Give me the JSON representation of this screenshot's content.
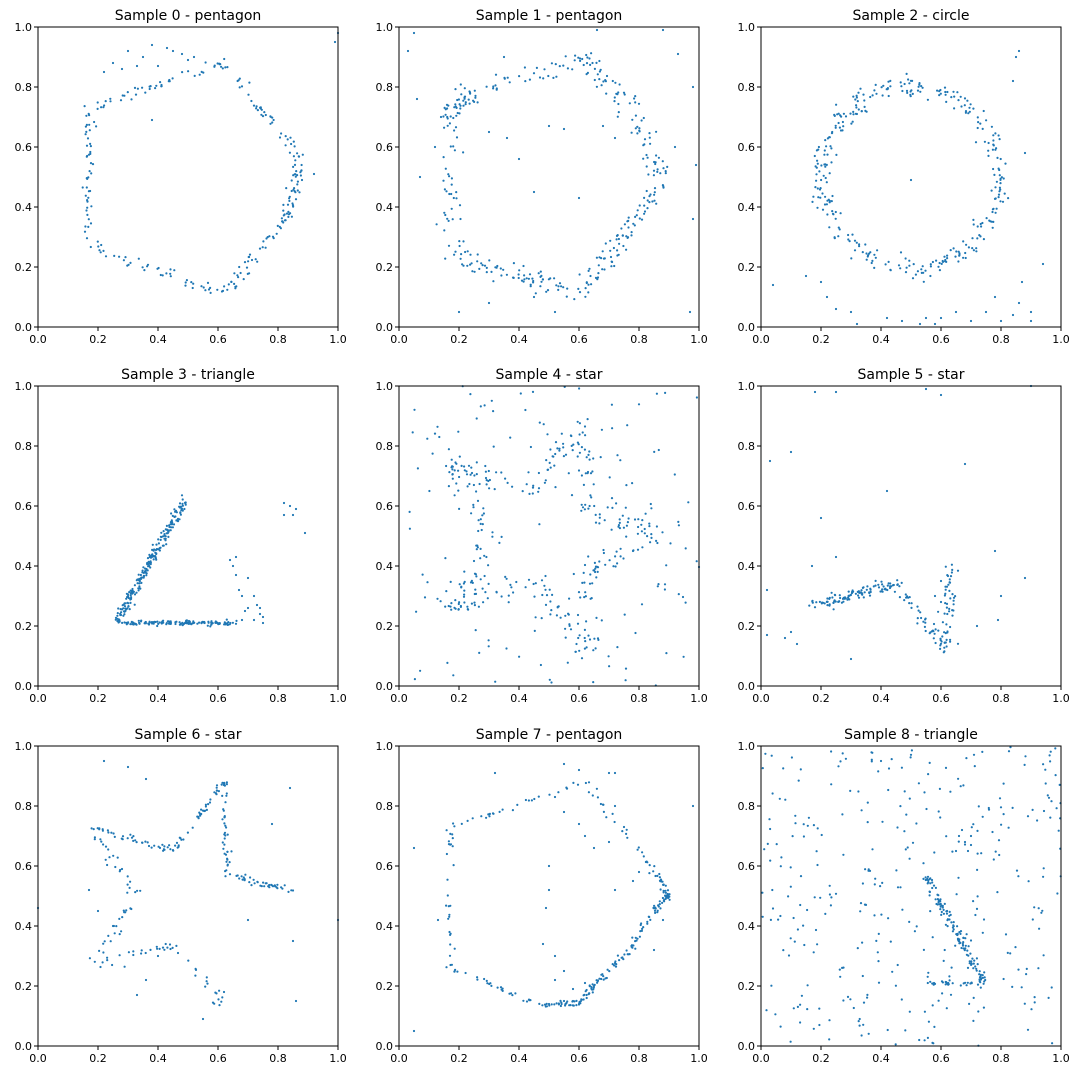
{
  "figure": {
    "point_color": "#1f77b4",
    "background": "#ffffff"
  },
  "chart_data": [
    {
      "type": "scatter",
      "title": "Sample 0 - pentagon",
      "xlim": [
        0,
        1
      ],
      "ylim": [
        0,
        1
      ],
      "xticks": [
        "0.0",
        "0.2",
        "0.4",
        "0.6",
        "0.8",
        "1.0"
      ],
      "yticks": [
        "0.0",
        "0.2",
        "0.4",
        "0.6",
        "0.8",
        "1.0"
      ],
      "grid": false,
      "outline": [
        [
          0.17,
          0.73
        ],
        [
          0.62,
          0.88
        ],
        [
          0.88,
          0.55
        ],
        [
          0.83,
          0.37
        ],
        [
          0.62,
          0.11
        ],
        [
          0.17,
          0.27
        ],
        [
          0.17,
          0.73
        ]
      ],
      "points_per_segment": 45,
      "noise": 0.01,
      "extra_points": [
        [
          0.25,
          0.88
        ],
        [
          0.3,
          0.92
        ],
        [
          0.35,
          0.9
        ],
        [
          0.38,
          0.94
        ],
        [
          0.45,
          0.92
        ],
        [
          0.5,
          0.89
        ],
        [
          0.22,
          0.85
        ],
        [
          0.28,
          0.86
        ],
        [
          0.33,
          0.87
        ],
        [
          0.4,
          0.87
        ],
        [
          0.43,
          0.93
        ],
        [
          0.48,
          0.91
        ],
        [
          0.52,
          0.9
        ],
        [
          0.99,
          0.95
        ],
        [
          1.0,
          0.98
        ],
        [
          0.92,
          0.51
        ],
        [
          0.38,
          0.69
        ]
      ]
    },
    {
      "type": "scatter",
      "title": "Sample 1 - pentagon",
      "xlim": [
        0,
        1
      ],
      "ylim": [
        0,
        1
      ],
      "xticks": [
        "0.0",
        "0.2",
        "0.4",
        "0.6",
        "0.8",
        "1.0"
      ],
      "yticks": [
        "0.0",
        "0.2",
        "0.4",
        "0.6",
        "0.8",
        "1.0"
      ],
      "grid": false,
      "outline": [
        [
          0.17,
          0.72
        ],
        [
          0.25,
          0.78
        ],
        [
          0.62,
          0.9
        ],
        [
          0.8,
          0.7
        ],
        [
          0.87,
          0.48
        ],
        [
          0.75,
          0.3
        ],
        [
          0.62,
          0.12
        ],
        [
          0.4,
          0.17
        ],
        [
          0.17,
          0.25
        ],
        [
          0.17,
          0.72
        ]
      ],
      "points_per_segment": 40,
      "noise": 0.018,
      "extra_points": [
        [
          0.03,
          0.92
        ],
        [
          0.05,
          0.98
        ],
        [
          0.06,
          0.76
        ],
        [
          0.07,
          0.5
        ],
        [
          0.12,
          0.6
        ],
        [
          0.3,
          0.65
        ],
        [
          0.36,
          0.63
        ],
        [
          0.4,
          0.56
        ],
        [
          0.45,
          0.45
        ],
        [
          0.5,
          0.67
        ],
        [
          0.55,
          0.66
        ],
        [
          0.6,
          0.43
        ],
        [
          0.68,
          0.67
        ],
        [
          0.72,
          0.63
        ],
        [
          0.88,
          0.99
        ],
        [
          0.98,
          0.8
        ],
        [
          0.99,
          0.54
        ],
        [
          0.98,
          0.36
        ],
        [
          0.97,
          0.05
        ],
        [
          0.2,
          0.05
        ],
        [
          0.3,
          0.08
        ],
        [
          0.45,
          0.1
        ],
        [
          0.52,
          0.05
        ],
        [
          0.66,
          0.99
        ],
        [
          0.14,
          0.7
        ],
        [
          0.35,
          0.9
        ],
        [
          0.93,
          0.91
        ],
        [
          0.92,
          0.6
        ]
      ]
    },
    {
      "type": "scatter",
      "title": "Sample 2 - circle",
      "xlim": [
        0,
        1
      ],
      "ylim": [
        0,
        1
      ],
      "xticks": [
        "0.0",
        "0.2",
        "0.4",
        "0.6",
        "0.8",
        "1.0"
      ],
      "yticks": [
        "0.0",
        "0.2",
        "0.4",
        "0.6",
        "0.8",
        "1.0"
      ],
      "grid": false,
      "circle": {
        "cx": 0.5,
        "cy": 0.5,
        "rx": 0.3,
        "ry": 0.3,
        "n": 330,
        "noise": 0.018
      },
      "extra_points": [
        [
          0.5,
          0.49
        ],
        [
          0.85,
          0.9
        ],
        [
          0.86,
          0.92
        ],
        [
          0.84,
          0.82
        ],
        [
          0.88,
          0.58
        ],
        [
          0.04,
          0.14
        ],
        [
          0.15,
          0.17
        ],
        [
          0.2,
          0.15
        ],
        [
          0.22,
          0.1
        ],
        [
          0.25,
          0.06
        ],
        [
          0.3,
          0.05
        ],
        [
          0.32,
          0.01
        ],
        [
          0.47,
          0.02
        ],
        [
          0.53,
          0.01
        ],
        [
          0.55,
          0.03
        ],
        [
          0.58,
          0.01
        ],
        [
          0.65,
          0.05
        ],
        [
          0.7,
          0.02
        ],
        [
          0.75,
          0.05
        ],
        [
          0.78,
          0.1
        ],
        [
          0.8,
          0.02
        ],
        [
          0.84,
          0.04
        ],
        [
          0.86,
          0.08
        ],
        [
          0.9,
          0.05
        ],
        [
          0.9,
          0.02
        ],
        [
          0.94,
          0.21
        ],
        [
          0.6,
          0.03
        ],
        [
          0.42,
          0.03
        ],
        [
          0.87,
          0.15
        ]
      ]
    },
    {
      "type": "scatter",
      "title": "Sample 3 - triangle",
      "xlim": [
        0,
        1
      ],
      "ylim": [
        0,
        1
      ],
      "xticks": [
        "0.0",
        "0.2",
        "0.4",
        "0.6",
        "0.8",
        "1.0"
      ],
      "yticks": [
        "0.0",
        "0.2",
        "0.4",
        "0.6",
        "0.8",
        "1.0"
      ],
      "grid": false,
      "outline": [
        [
          0.26,
          0.21
        ],
        [
          0.49,
          0.62
        ]
      ],
      "points_per_segment": 220,
      "noise": 0.008,
      "outline2": [
        [
          0.26,
          0.21
        ],
        [
          0.66,
          0.21
        ]
      ],
      "points_per_segment2": 130,
      "noise2": 0.004,
      "extra_points": [
        [
          0.64,
          0.42
        ],
        [
          0.65,
          0.4
        ],
        [
          0.66,
          0.37
        ],
        [
          0.67,
          0.32
        ],
        [
          0.68,
          0.3
        ],
        [
          0.69,
          0.25
        ],
        [
          0.7,
          0.26
        ],
        [
          0.7,
          0.36
        ],
        [
          0.72,
          0.3
        ],
        [
          0.73,
          0.27
        ],
        [
          0.74,
          0.26
        ],
        [
          0.74,
          0.24
        ],
        [
          0.75,
          0.23
        ],
        [
          0.75,
          0.21
        ],
        [
          0.72,
          0.22
        ],
        [
          0.68,
          0.22
        ],
        [
          0.82,
          0.61
        ],
        [
          0.84,
          0.6
        ],
        [
          0.82,
          0.57
        ],
        [
          0.86,
          0.59
        ],
        [
          0.85,
          0.57
        ],
        [
          0.89,
          0.51
        ],
        [
          0.66,
          0.43
        ]
      ]
    },
    {
      "type": "scatter",
      "title": "Sample 4 - star",
      "xlim": [
        0,
        1
      ],
      "ylim": [
        0,
        1
      ],
      "xticks": [
        "0.0",
        "0.2",
        "0.4",
        "0.6",
        "0.8",
        "1.0"
      ],
      "yticks": [
        "0.0",
        "0.2",
        "0.4",
        "0.6",
        "0.8",
        "1.0"
      ],
      "grid": false,
      "outline": [
        [
          0.18,
          0.73
        ],
        [
          0.45,
          0.66
        ],
        [
          0.62,
          0.88
        ],
        [
          0.63,
          0.58
        ],
        [
          0.87,
          0.52
        ],
        [
          0.63,
          0.38
        ],
        [
          0.62,
          0.12
        ],
        [
          0.45,
          0.34
        ],
        [
          0.18,
          0.27
        ],
        [
          0.31,
          0.5
        ],
        [
          0.18,
          0.73
        ]
      ],
      "points_per_segment": 30,
      "noise": 0.02,
      "random_noise": {
        "n": 160,
        "seed": 44
      }
    },
    {
      "type": "scatter",
      "title": "Sample 5 - star",
      "xlim": [
        0,
        1
      ],
      "ylim": [
        0,
        1
      ],
      "xticks": [
        "0.0",
        "0.2",
        "0.4",
        "0.6",
        "0.8",
        "1.0"
      ],
      "yticks": [
        "0.0",
        "0.2",
        "0.4",
        "0.6",
        "0.8",
        "1.0"
      ],
      "grid": false,
      "outline": [
        [
          0.18,
          0.27
        ],
        [
          0.3,
          0.3
        ],
        [
          0.45,
          0.34
        ],
        [
          0.62,
          0.12
        ],
        [
          0.63,
          0.41
        ]
      ],
      "points_per_segment": 50,
      "noise": 0.012,
      "extra_points": [
        [
          0.18,
          0.98
        ],
        [
          0.25,
          0.98
        ],
        [
          0.03,
          0.75
        ],
        [
          0.1,
          0.78
        ],
        [
          0.2,
          0.56
        ],
        [
          0.42,
          0.65
        ],
        [
          0.55,
          0.99
        ],
        [
          0.6,
          0.97
        ],
        [
          0.68,
          0.74
        ],
        [
          0.9,
          1.0
        ],
        [
          0.88,
          0.36
        ],
        [
          0.78,
          0.45
        ],
        [
          0.8,
          0.3
        ],
        [
          0.79,
          0.22
        ],
        [
          0.72,
          0.2
        ],
        [
          0.02,
          0.32
        ],
        [
          0.1,
          0.18
        ],
        [
          0.12,
          0.14
        ],
        [
          0.08,
          0.16
        ],
        [
          0.02,
          0.17
        ],
        [
          0.17,
          0.4
        ],
        [
          0.25,
          0.43
        ],
        [
          0.3,
          0.09
        ],
        [
          0.6,
          0.28
        ],
        [
          0.58,
          0.3
        ],
        [
          0.6,
          0.35
        ]
      ]
    },
    {
      "type": "scatter",
      "title": "Sample 6 - star",
      "xlim": [
        0,
        1
      ],
      "ylim": [
        0,
        1
      ],
      "xticks": [
        "0.0",
        "0.2",
        "0.4",
        "0.6",
        "0.8",
        "1.0"
      ],
      "yticks": [
        "0.0",
        "0.2",
        "0.4",
        "0.6",
        "0.8",
        "1.0"
      ],
      "grid": false,
      "outline": [
        [
          0.17,
          0.73
        ],
        [
          0.45,
          0.65
        ],
        [
          0.62,
          0.88
        ],
        [
          0.63,
          0.57
        ],
        [
          0.85,
          0.52
        ]
      ],
      "points_per_segment": 40,
      "noise": 0.006,
      "outline2": [
        [
          0.17,
          0.73
        ],
        [
          0.33,
          0.5
        ],
        [
          0.17,
          0.27
        ],
        [
          0.45,
          0.34
        ],
        [
          0.6,
          0.15
        ]
      ],
      "points_per_segment2": 22,
      "noise2": 0.01,
      "extra_points": [
        [
          0.22,
          0.95
        ],
        [
          0.3,
          0.93
        ],
        [
          0.36,
          0.89
        ],
        [
          0.17,
          0.52
        ],
        [
          0.0,
          0.46
        ],
        [
          0.2,
          0.45
        ],
        [
          0.25,
          0.4
        ],
        [
          0.4,
          0.3
        ],
        [
          0.33,
          0.17
        ],
        [
          0.36,
          0.22
        ],
        [
          0.55,
          0.09
        ],
        [
          0.62,
          0.18
        ],
        [
          0.7,
          0.42
        ],
        [
          0.78,
          0.74
        ],
        [
          0.84,
          0.86
        ],
        [
          0.85,
          0.35
        ],
        [
          0.86,
          0.15
        ],
        [
          1.0,
          0.42
        ],
        [
          0.28,
          0.59
        ]
      ]
    },
    {
      "type": "scatter",
      "title": "Sample 7 - pentagon",
      "xlim": [
        0,
        1
      ],
      "ylim": [
        0,
        1
      ],
      "xticks": [
        "0.0",
        "0.2",
        "0.4",
        "0.6",
        "0.8",
        "1.0"
      ],
      "yticks": [
        "0.0",
        "0.2",
        "0.4",
        "0.6",
        "0.8",
        "1.0"
      ],
      "grid": false,
      "outline": [
        [
          0.18,
          0.73
        ],
        [
          0.62,
          0.88
        ],
        [
          0.86,
          0.57
        ],
        [
          0.9,
          0.5
        ],
        [
          0.85,
          0.45
        ],
        [
          0.75,
          0.3
        ],
        [
          0.65,
          0.2
        ],
        [
          0.6,
          0.14
        ],
        [
          0.47,
          0.14
        ],
        [
          0.17,
          0.26
        ],
        [
          0.17,
          0.73
        ]
      ],
      "points_per_segment": 28,
      "noise": 0.006,
      "extra_points": [
        [
          0.55,
          0.94
        ],
        [
          0.6,
          0.92
        ],
        [
          0.7,
          0.91
        ],
        [
          0.72,
          0.91
        ],
        [
          0.32,
          0.91
        ],
        [
          0.05,
          0.66
        ],
        [
          0.13,
          0.42
        ],
        [
          0.05,
          0.05
        ],
        [
          0.52,
          0.83
        ],
        [
          0.55,
          0.78
        ],
        [
          0.6,
          0.74
        ],
        [
          0.62,
          0.7
        ],
        [
          0.65,
          0.66
        ],
        [
          0.7,
          0.68
        ],
        [
          0.72,
          0.8
        ],
        [
          0.75,
          0.73
        ],
        [
          0.78,
          0.55
        ],
        [
          0.72,
          0.52
        ],
        [
          0.5,
          0.6
        ],
        [
          0.5,
          0.52
        ],
        [
          0.49,
          0.46
        ],
        [
          0.48,
          0.34
        ],
        [
          0.52,
          0.22
        ],
        [
          0.52,
          0.3
        ],
        [
          0.55,
          0.25
        ],
        [
          0.58,
          0.19
        ],
        [
          0.62,
          0.21
        ],
        [
          0.8,
          0.58
        ],
        [
          0.88,
          0.42
        ],
        [
          0.98,
          0.8
        ],
        [
          0.85,
          0.32
        ],
        [
          0.55,
          0.15
        ],
        [
          0.58,
          0.15
        ],
        [
          0.5,
          0.14
        ]
      ]
    },
    {
      "type": "scatter",
      "title": "Sample 8 - triangle",
      "xlim": [
        0,
        1
      ],
      "ylim": [
        0,
        1
      ],
      "xticks": [
        "0.0",
        "0.2",
        "0.4",
        "0.6",
        "0.8",
        "1.0"
      ],
      "yticks": [
        "0.0",
        "0.2",
        "0.4",
        "0.6",
        "0.8",
        "1.0"
      ],
      "grid": false,
      "outline": [
        [
          0.55,
          0.57
        ],
        [
          0.74,
          0.21
        ]
      ],
      "points_per_segment": 120,
      "noise": 0.008,
      "outline2": [
        [
          0.55,
          0.21
        ],
        [
          0.74,
          0.21
        ]
      ],
      "points_per_segment2": 25,
      "noise2": 0.005,
      "extra_points": [
        [
          0.66,
          0.7
        ],
        [
          0.67,
          0.72
        ],
        [
          0.68,
          0.68
        ],
        [
          0.69,
          0.65
        ],
        [
          0.7,
          0.7
        ],
        [
          0.65,
          0.65
        ],
        [
          0.7,
          0.67
        ]
      ],
      "random_noise": {
        "n": 330,
        "seed": 88
      }
    }
  ]
}
